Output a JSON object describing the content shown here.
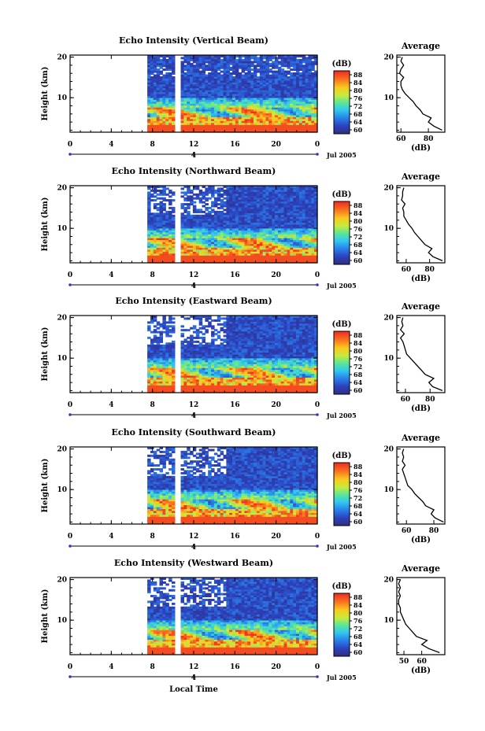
{
  "figure": {
    "xlabel": "Local Time",
    "date_label": "Jul 2005",
    "ylabel": "Height (km)",
    "cb_unit": "(dB)",
    "avg_title": "Average",
    "avg_xlabel": "(dB)"
  },
  "chart_data": [
    {
      "type": "heatmap",
      "title": "Echo Intensity (Vertical Beam)",
      "xlabel": "Local Time",
      "ylabel": "Height (km)",
      "x_ticks": [
        "0",
        "4",
        "8",
        "12",
        "16",
        "20",
        "0"
      ],
      "x_range": [
        0,
        24
      ],
      "date_ticks": [
        "4"
      ],
      "y_ticks": [
        "10",
        "20"
      ],
      "y_range": [
        1.5,
        20.5
      ],
      "data_start_hour": 7.5,
      "gap_hours": [
        10.3,
        10.7
      ],
      "colorbar": {
        "unit": "(dB)",
        "ticks": [
          "88",
          "84",
          "80",
          "76",
          "72",
          "68",
          "64",
          "60"
        ],
        "range": [
          58,
          90
        ]
      },
      "average": {
        "title": "Average",
        "xlabel": "(dB)",
        "x_ticks": [
          "60",
          "80"
        ],
        "x_range": [
          57,
          92
        ],
        "y_ticks": [
          "10",
          "20"
        ],
        "height_km": [
          2,
          3,
          4,
          5,
          6,
          7,
          8,
          9,
          10,
          11,
          12,
          13,
          14,
          15,
          16,
          17,
          18,
          19,
          20
        ],
        "db": [
          90,
          84,
          80,
          82,
          76,
          74,
          71,
          69,
          66,
          63,
          61,
          60,
          60,
          62,
          59,
          60,
          62,
          60,
          61
        ]
      }
    },
    {
      "type": "heatmap",
      "title": "Echo Intensity (Northward Beam)",
      "xlabel": "Local Time",
      "ylabel": "Height (km)",
      "x_ticks": [
        "0",
        "4",
        "8",
        "12",
        "16",
        "20",
        "0"
      ],
      "x_range": [
        0,
        24
      ],
      "date_ticks": [
        "4"
      ],
      "y_ticks": [
        "10",
        "20"
      ],
      "y_range": [
        1.5,
        20.5
      ],
      "data_start_hour": 7.5,
      "gap_hours": [
        10.3,
        10.7
      ],
      "colorbar": {
        "unit": "(dB)",
        "ticks": [
          "88",
          "84",
          "80",
          "76",
          "72",
          "68",
          "64",
          "60"
        ],
        "range": [
          58,
          90
        ]
      },
      "average": {
        "title": "Average",
        "xlabel": "(dB)",
        "x_ticks": [
          "60",
          "80"
        ],
        "x_range": [
          52,
          93
        ],
        "y_ticks": [
          "10",
          "20"
        ],
        "height_km": [
          2,
          3,
          4,
          5,
          6,
          7,
          8,
          9,
          10,
          11,
          12,
          13,
          14,
          15,
          16,
          17,
          18,
          19,
          20
        ],
        "db": [
          91,
          83,
          79,
          82,
          76,
          73,
          70,
          67,
          65,
          62,
          60,
          58,
          58,
          57,
          59,
          56,
          57,
          57,
          58
        ]
      }
    },
    {
      "type": "heatmap",
      "title": "Echo Intensity (Eastward Beam)",
      "xlabel": "Local Time",
      "ylabel": "Height (km)",
      "x_ticks": [
        "0",
        "4",
        "8",
        "12",
        "16",
        "20",
        "0"
      ],
      "x_range": [
        0,
        24
      ],
      "date_ticks": [
        "4"
      ],
      "y_ticks": [
        "10",
        "20"
      ],
      "y_range": [
        1.5,
        20.5
      ],
      "data_start_hour": 7.5,
      "gap_hours": [
        10.3,
        10.7
      ],
      "colorbar": {
        "unit": "(dB)",
        "ticks": [
          "88",
          "84",
          "80",
          "76",
          "72",
          "68",
          "64",
          "60"
        ],
        "range": [
          58,
          90
        ]
      },
      "average": {
        "title": "Average",
        "xlabel": "(dB)",
        "x_ticks": [
          "60",
          "80"
        ],
        "x_range": [
          53,
          92
        ],
        "y_ticks": [
          "10",
          "20"
        ],
        "height_km": [
          2,
          3,
          4,
          5,
          6,
          7,
          8,
          9,
          10,
          11,
          12,
          13,
          14,
          15,
          16,
          17,
          18,
          19,
          20
        ],
        "db": [
          90,
          82,
          79,
          83,
          76,
          73,
          70,
          67,
          64,
          61,
          60,
          59,
          58,
          56,
          59,
          56,
          58,
          57,
          58
        ]
      }
    },
    {
      "type": "heatmap",
      "title": "Echo Intensity (Southward Beam)",
      "xlabel": "Local Time",
      "ylabel": "Height (km)",
      "x_ticks": [
        "0",
        "4",
        "8",
        "12",
        "16",
        "20",
        "0"
      ],
      "x_range": [
        0,
        24
      ],
      "date_ticks": [
        "4"
      ],
      "y_ticks": [
        "10",
        "20"
      ],
      "y_range": [
        1.5,
        20.5
      ],
      "data_start_hour": 7.5,
      "gap_hours": [
        10.3,
        10.7
      ],
      "colorbar": {
        "unit": "(dB)",
        "ticks": [
          "88",
          "84",
          "80",
          "76",
          "72",
          "68",
          "64",
          "60"
        ],
        "range": [
          58,
          90
        ]
      },
      "average": {
        "title": "Average",
        "xlabel": "(dB)",
        "x_ticks": [
          "60",
          "80"
        ],
        "x_range": [
          53,
          88
        ],
        "y_ticks": [
          "10",
          "20"
        ],
        "height_km": [
          2,
          3,
          4,
          5,
          6,
          7,
          8,
          9,
          10,
          11,
          12,
          13,
          14,
          15,
          16,
          17,
          18,
          19,
          20
        ],
        "db": [
          87,
          81,
          78,
          80,
          74,
          72,
          69,
          66,
          64,
          61,
          60,
          59,
          58,
          57,
          59,
          57,
          58,
          57,
          58
        ]
      }
    },
    {
      "type": "heatmap",
      "title": "Echo Intensity (Westward Beam)",
      "xlabel": "Local Time",
      "ylabel": "Height (km)",
      "x_ticks": [
        "0",
        "4",
        "8",
        "12",
        "16",
        "20",
        "0"
      ],
      "x_range": [
        0,
        24
      ],
      "date_ticks": [
        "4"
      ],
      "y_ticks": [
        "10",
        "20"
      ],
      "y_range": [
        1.5,
        20.5
      ],
      "data_start_hour": 7.5,
      "gap_hours": [
        10.3,
        10.7
      ],
      "colorbar": {
        "unit": "(dB)",
        "ticks": [
          "88",
          "84",
          "80",
          "76",
          "72",
          "68",
          "64",
          "60"
        ],
        "range": [
          58,
          90
        ]
      },
      "average": {
        "title": "Average",
        "xlabel": "(dB)",
        "x_ticks": [
          "50",
          "60"
        ],
        "x_range": [
          46,
          73
        ],
        "y_ticks": [
          "10",
          "20"
        ],
        "height_km": [
          2,
          3,
          4,
          5,
          6,
          7,
          8,
          9,
          10,
          11,
          12,
          13,
          14,
          15,
          16,
          17,
          18,
          19,
          20
        ],
        "db": [
          70,
          64,
          60,
          63,
          57,
          55,
          53,
          51,
          50,
          49,
          48,
          48,
          47,
          47,
          48,
          47,
          48,
          47,
          48
        ]
      }
    }
  ]
}
